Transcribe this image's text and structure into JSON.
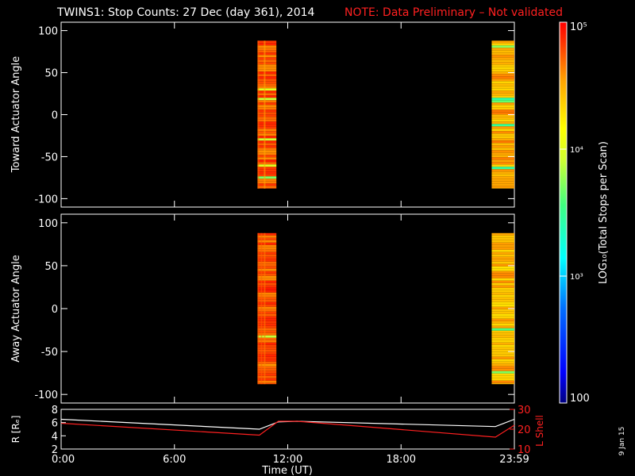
{
  "title": {
    "main": "TWINS1: Stop Counts: 27 Dec (day 361), 2014",
    "note": "NOTE: Data Preliminary – Not validated"
  },
  "colors": {
    "background": "#000000",
    "axes": "#ffffff",
    "note": "#ff2020",
    "lshell": "#ff2020",
    "radius": "#ffffff"
  },
  "chart_data": [
    {
      "type": "heatmap",
      "name": "toward-panel",
      "ylabel": "Toward Actuator Angle",
      "ylim": [
        -110,
        110
      ],
      "yticks": [
        100,
        50,
        0,
        -50,
        -100
      ],
      "xlim": [
        0,
        24
      ],
      "blocks": [
        {
          "t_start": 10.4,
          "t_end": 11.4,
          "angle_min": -88,
          "angle_max": 88,
          "log_level": 4.75
        },
        {
          "t_start": 22.8,
          "t_end": 24.0,
          "angle_min": -88,
          "angle_max": 88,
          "log_level": 4.5
        }
      ]
    },
    {
      "type": "heatmap",
      "name": "away-panel",
      "ylabel": "Away Actuator Angle",
      "ylim": [
        -110,
        110
      ],
      "yticks": [
        100,
        50,
        0,
        -50,
        -100
      ],
      "xlim": [
        0,
        24
      ],
      "blocks": [
        {
          "t_start": 10.4,
          "t_end": 11.4,
          "angle_min": -88,
          "angle_max": 88,
          "log_level": 4.75
        },
        {
          "t_start": 22.8,
          "t_end": 24.0,
          "angle_min": -88,
          "angle_max": 88,
          "log_level": 4.45
        }
      ]
    },
    {
      "type": "line",
      "name": "orbit-panel",
      "xlabel": "Time (UT)",
      "xlim": [
        0,
        24
      ],
      "xticks": [
        "0:00",
        "6:00",
        "12:00",
        "18:00",
        "23:59"
      ],
      "xtick_values": [
        0,
        6,
        12,
        18,
        24
      ],
      "y_left": {
        "label": "R [Rₑ]",
        "ylim": [
          2,
          8
        ],
        "ticks": [
          8,
          6,
          4,
          2
        ]
      },
      "y_right": {
        "label": "L Shell",
        "ylim": [
          10,
          30
        ],
        "ticks": [
          30,
          20,
          10
        ]
      },
      "series": [
        {
          "name": "R",
          "axis": "left",
          "x": [
            0,
            10.5,
            11.5,
            12.5,
            23,
            24
          ],
          "values": [
            6.5,
            5.0,
            6.1,
            6.2,
            5.4,
            6.5
          ]
        },
        {
          "name": "L Shell",
          "axis": "right",
          "x": [
            0,
            10.5,
            11.5,
            12.5,
            23,
            24
          ],
          "values": [
            23,
            17,
            24,
            24,
            16,
            22
          ]
        }
      ]
    }
  ],
  "colorbar": {
    "label": "LOG₁₀(Total Stops per Scan)",
    "ticks": [
      "10⁵",
      "10⁴",
      "10³",
      "100"
    ],
    "tick_values": [
      5,
      4,
      3,
      2
    ],
    "range": [
      2,
      5
    ]
  },
  "footer": {
    "date_stamp": "9 Jan 15"
  }
}
